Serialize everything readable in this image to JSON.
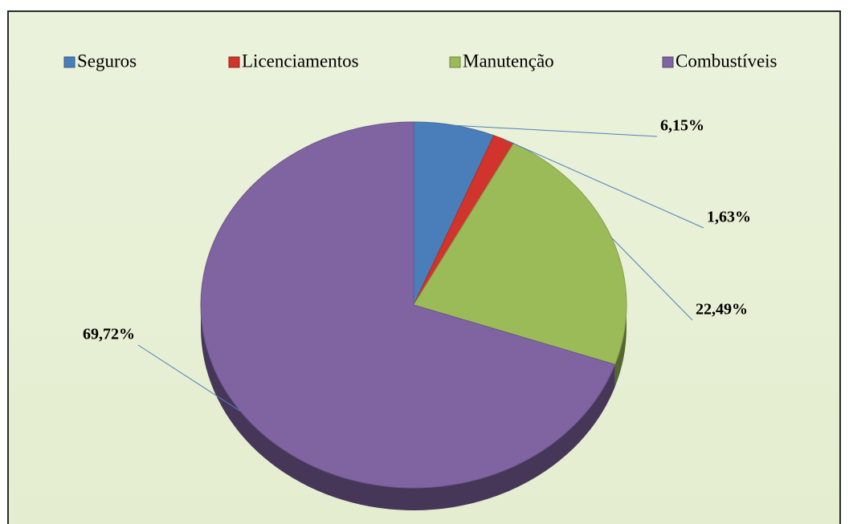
{
  "chart_data": {
    "type": "pie",
    "categories": [
      "Seguros",
      "Licenciamentos",
      "Manutenção",
      "Combustíveis"
    ],
    "values": [
      6.15,
      1.63,
      22.49,
      69.72
    ],
    "value_labels": [
      "6,15%",
      "1,63%",
      "22,49%",
      "69,72%"
    ],
    "colors": [
      "#4a7ebb",
      "#d0342c",
      "#9bbb59",
      "#8064a2"
    ],
    "legend": "top"
  }
}
